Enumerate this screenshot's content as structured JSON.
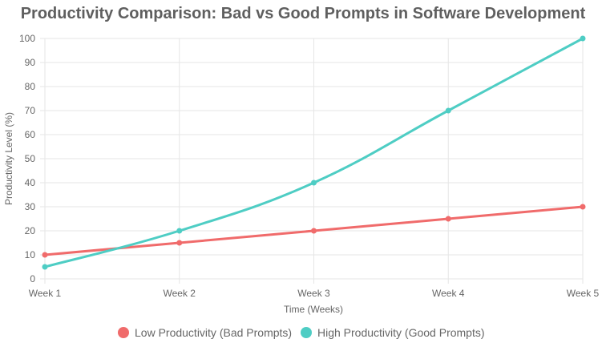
{
  "chart_data": {
    "type": "line",
    "title": "Productivity Comparison: Bad vs Good Prompts in Software Development",
    "xlabel": "Time (Weeks)",
    "ylabel": "Productivity Level (%)",
    "categories": [
      "Week 1",
      "Week 2",
      "Week 3",
      "Week 4",
      "Week 5"
    ],
    "ylim": [
      0,
      100
    ],
    "yticks": [
      0,
      10,
      20,
      30,
      40,
      50,
      60,
      70,
      80,
      90,
      100
    ],
    "grid": true,
    "legend_position": "bottom",
    "series": [
      {
        "name": "Low Productivity (Bad Prompts)",
        "color": "#f06b6b",
        "values": [
          10,
          15,
          20,
          25,
          30
        ]
      },
      {
        "name": "High Productivity (Good Prompts)",
        "color": "#4ecdc4",
        "values": [
          5,
          20,
          40,
          70,
          100
        ]
      }
    ]
  }
}
